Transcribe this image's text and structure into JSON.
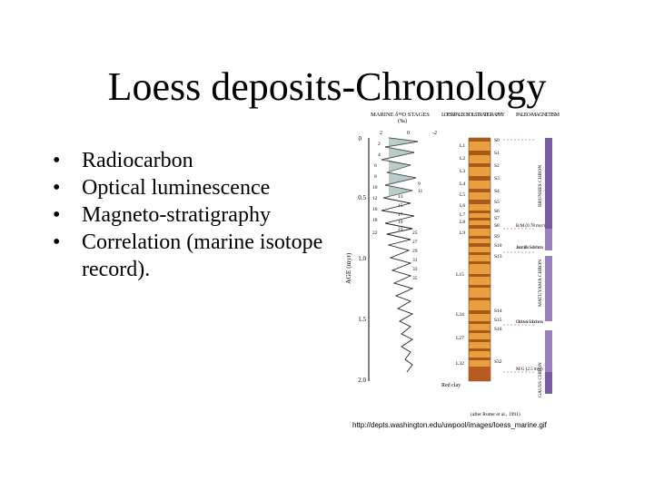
{
  "slide": {
    "title": "Loess deposits-Chronology",
    "bullets": [
      {
        "text": "Radiocarbon"
      },
      {
        "text": "Optical luminescence"
      },
      {
        "text": "Magneto-stratigraphy"
      },
      {
        "text": "Correlation (marine isotope record)."
      }
    ],
    "bullet_symbol": "•"
  },
  "figure": {
    "header_marine": "MARINE δ¹⁸O STAGES",
    "header_marine_sub": "(‰)",
    "header_loess": "LOESS/PALEOSOL STRATIGRAPHY",
    "header_paleo": "PALEO-MAGNETISM",
    "axis_label": "AGE (myr)",
    "axis_ticks": [
      "0",
      "0.5",
      "1.0",
      "1.5",
      "2.0"
    ],
    "top_scale": [
      "2",
      "0",
      "-2"
    ],
    "stage_numbers": [
      "2",
      "4",
      "6",
      "8",
      "10",
      "12",
      "16",
      "18",
      "22",
      "9",
      "11",
      "13",
      "15",
      "17",
      "19",
      "21",
      "25",
      "27",
      "29",
      "31",
      "33",
      "35"
    ],
    "loess_labels": [
      "L1",
      "L2",
      "L3",
      "L4",
      "L5",
      "L6",
      "L7",
      "L8",
      "L9",
      "L15",
      "L24",
      "L27",
      "L32"
    ],
    "paleosol_labels": [
      "S0",
      "S1",
      "S2",
      "S3",
      "S4",
      "S5",
      "S6",
      "S7",
      "S8",
      "S9",
      "S10",
      "S13",
      "S14",
      "S15",
      "S16",
      "S32"
    ],
    "bottom_label": "Red clay",
    "events": [
      "B/M (0.78 myr)",
      "Jaramillo Subchron",
      "Olduvai Subchron",
      "M/G (2.5 myr)"
    ],
    "chrons": [
      "BRUNHES CHRON",
      "MATUYAMA CHRON",
      "GAUSS CHRON"
    ],
    "citation": "(after Rutter et al., 1991)",
    "credit": "http://depts.washington.edu/uwpool/images/loess_marine.gif"
  },
  "colors": {
    "loess": "#e8a040",
    "paleosol": "#a85a18",
    "redclay": "#b65a20",
    "curve_fill": "#9ab8b4",
    "brunhes": "#7a5aa0",
    "matuyama": "#9a80bc",
    "event_line": "#c04040"
  }
}
